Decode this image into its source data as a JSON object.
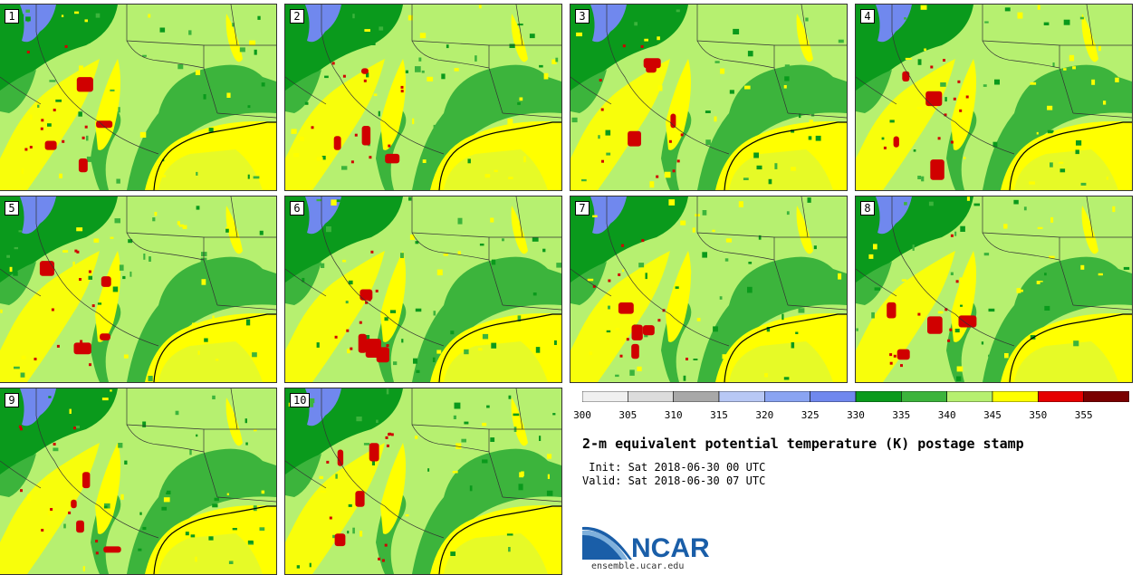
{
  "panels": [
    {
      "label": "1"
    },
    {
      "label": "2"
    },
    {
      "label": "3"
    },
    {
      "label": "4"
    },
    {
      "label": "5"
    },
    {
      "label": "6"
    },
    {
      "label": "7"
    },
    {
      "label": "8"
    },
    {
      "label": "9"
    },
    {
      "label": "10"
    }
  ],
  "colorbar": {
    "ticks": [
      "300",
      "305",
      "310",
      "315",
      "320",
      "325",
      "330",
      "335",
      "340",
      "345",
      "350",
      "355"
    ],
    "colors": [
      "#f0f0f0",
      "#dcdcdc",
      "#a8a8a8",
      "#b8c8f5",
      "#8aa4f2",
      "#7088ee",
      "#0a9a1c",
      "#3cb43c",
      "#b6f070",
      "#ffff00",
      "#e60000",
      "#7a0000"
    ]
  },
  "title": "2-m equivalent potential temperature (K) postage stamp",
  "init": " Init: Sat 2018-06-30 00 UTC",
  "valid": "Valid: Sat 2018-06-30 07 UTC",
  "logo_text": "NCAR",
  "website": "ensemble.ucar.edu",
  "map_colors": {
    "base": "#b6f070",
    "dark_green": "#0a9a1c",
    "green": "#3cb43c",
    "yellow": "#ffff00",
    "red": "#d00000",
    "blue": "#7088ee"
  }
}
